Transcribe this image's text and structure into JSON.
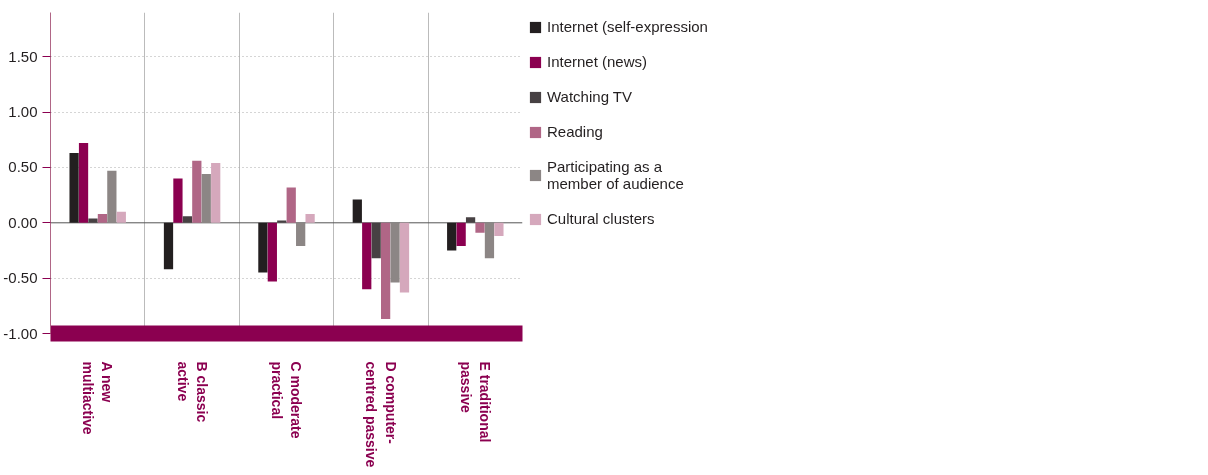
{
  "chart_data": {
    "type": "bar",
    "categories": [
      "A new\nmultiactive",
      "B classic\nactive",
      "C moderate\npractical",
      "D computer-\ncentred passive",
      "E traditional\npassive"
    ],
    "series": [
      {
        "name": "Internet (self-expression",
        "color": "#231f20",
        "values": [
          0.63,
          -0.42,
          -0.45,
          0.21,
          -0.25
        ]
      },
      {
        "name": "Internet (news)",
        "color": "#8b0050",
        "values": [
          0.72,
          0.4,
          -0.53,
          -0.6,
          -0.21
        ]
      },
      {
        "name": "Watching TV",
        "color": "#474143",
        "values": [
          0.04,
          0.06,
          0.02,
          -0.32,
          0.05
        ]
      },
      {
        "name": "Reading",
        "color": "#b06686",
        "values": [
          0.08,
          0.56,
          0.32,
          -0.87,
          -0.09
        ]
      },
      {
        "name": "Participating as a\nmember of audience",
        "color": "#8c8685",
        "values": [
          0.47,
          0.44,
          -0.21,
          -0.54,
          -0.32
        ]
      },
      {
        "name": "Cultural clusters",
        "color": "#d5a8bc",
        "values": [
          0.1,
          0.54,
          0.08,
          -0.63,
          -0.12
        ]
      }
    ],
    "ylim": [
      -1.0,
      1.9
    ],
    "yticks": [
      {
        "value": -1.0,
        "label": "-1.00"
      },
      {
        "value": -0.5,
        "label": "-0.50"
      },
      {
        "value": 0.0,
        "label": "0.00"
      },
      {
        "value": 0.5,
        "label": "0.50"
      },
      {
        "value": 1.0,
        "label": "1.00"
      },
      {
        "value": 1.5,
        "label": "1.50"
      }
    ],
    "ref_lines": [
      {
        "axis": "y",
        "value": 0,
        "label": null,
        "color": "#555555"
      }
    ],
    "grid": true,
    "legend": "right"
  }
}
